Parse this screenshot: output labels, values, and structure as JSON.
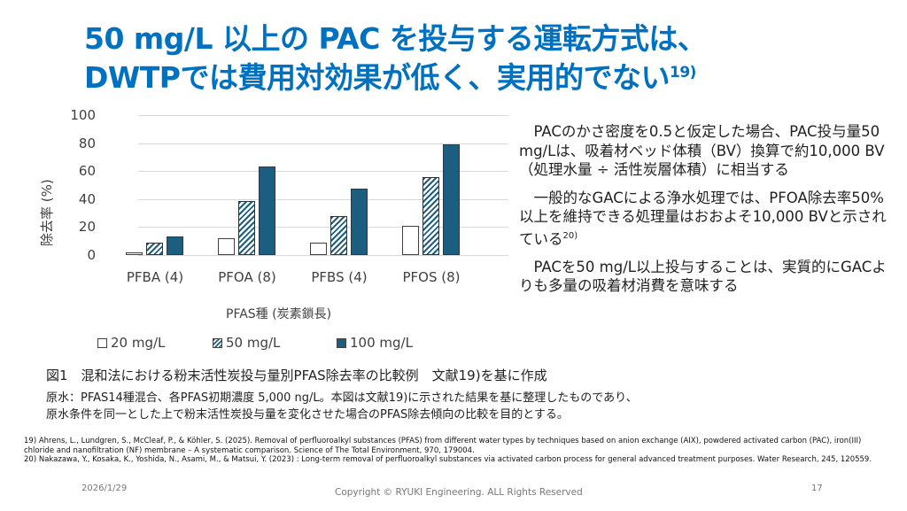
{
  "slide": {
    "title_line1": "50 mg/L 以上の PAC を投与する運転方式は、",
    "title_line2": "DWTPでは費用対効果が低く、実用的でない",
    "title_ref": "19)"
  },
  "chart_data": {
    "type": "bar",
    "title": "",
    "xlabel": "PFAS種 (炭素鎖長)",
    "ylabel": "除去率 (%)",
    "ylim": [
      0,
      100
    ],
    "yticks": [
      "100",
      "80",
      "60",
      "40",
      "20",
      "0"
    ],
    "grid": true,
    "legend_position": "bottom",
    "categories": [
      "PFBA (4)",
      "PFOA (8)",
      "PFBS (4)",
      "PFOS (8)"
    ],
    "series": [
      {
        "name": "20 mg/L",
        "style": "white",
        "values": [
          2,
          12,
          9,
          21
        ]
      },
      {
        "name": "50 mg/L",
        "style": "hatched",
        "values": [
          9,
          38.5,
          28,
          55.5
        ]
      },
      {
        "name": "100 mg/L",
        "style": "solid",
        "values": [
          13,
          63,
          47.5,
          79
        ]
      }
    ],
    "colors": {
      "fill": "#1b5e7f",
      "border": "#404040",
      "grid": "#d9d9d9"
    }
  },
  "body": {
    "para1": "PACのかさ密度を0.5と仮定した場合、PAC投与量50 mg/Lは、吸着材ベッド体積（BV）換算で約10,000 BV（処理水量 ÷ 活性炭層体積）に相当する",
    "para2": "一般的なGACによる浄水処理では、PFOA除去率50%以上を維持できる処理量はおおよそ10,000 BVと示されている",
    "para2_ref": "20)",
    "para3": "PACを50 mg/L以上投与することは、実質的にGACよりも多量の吸着材消費を意味する"
  },
  "figure": {
    "caption": "図1　混和法における粉末活性炭投与量別PFAS除去率の比較例　文献19)を基に作成",
    "note_line1": "原水：PFAS14種混合、各PFAS初期濃度 5,000 ng/L。本図は文献19)に示された結果を基に整理したものであり、",
    "note_line2": "原水条件を同一とした上で粉末活性炭投与量を変化させた場合のPFAS除去傾向の比較を目的とする。"
  },
  "references": {
    "ref19": "19) Ahrens, L., Lundgren, S., McCleaf, P., & Köhler, S. (2025). Removal of perfluoroalkyl substances (PFAS) from different water types by techniques based on anion exchange (AIX), powdered activated carbon (PAC), iron(III) chloride and nanofiltration (NF) membrane – A systematic comparison. Science of The Total Environment, 970, 179004.",
    "ref20": "20) Nakazawa, Y., Kosaka, K., Yoshida, N., Asami, M., & Matsui, Y. (2023) : Long-term removal of perfluoroalkyl substances via activated carbon process for general advanced treatment purposes. Water Research, 245, 120559."
  },
  "footer": {
    "date": "2026/1/29",
    "copyright": "Copyright © RYUKI Engineering. ALL Rights Reserved",
    "page": "17"
  }
}
